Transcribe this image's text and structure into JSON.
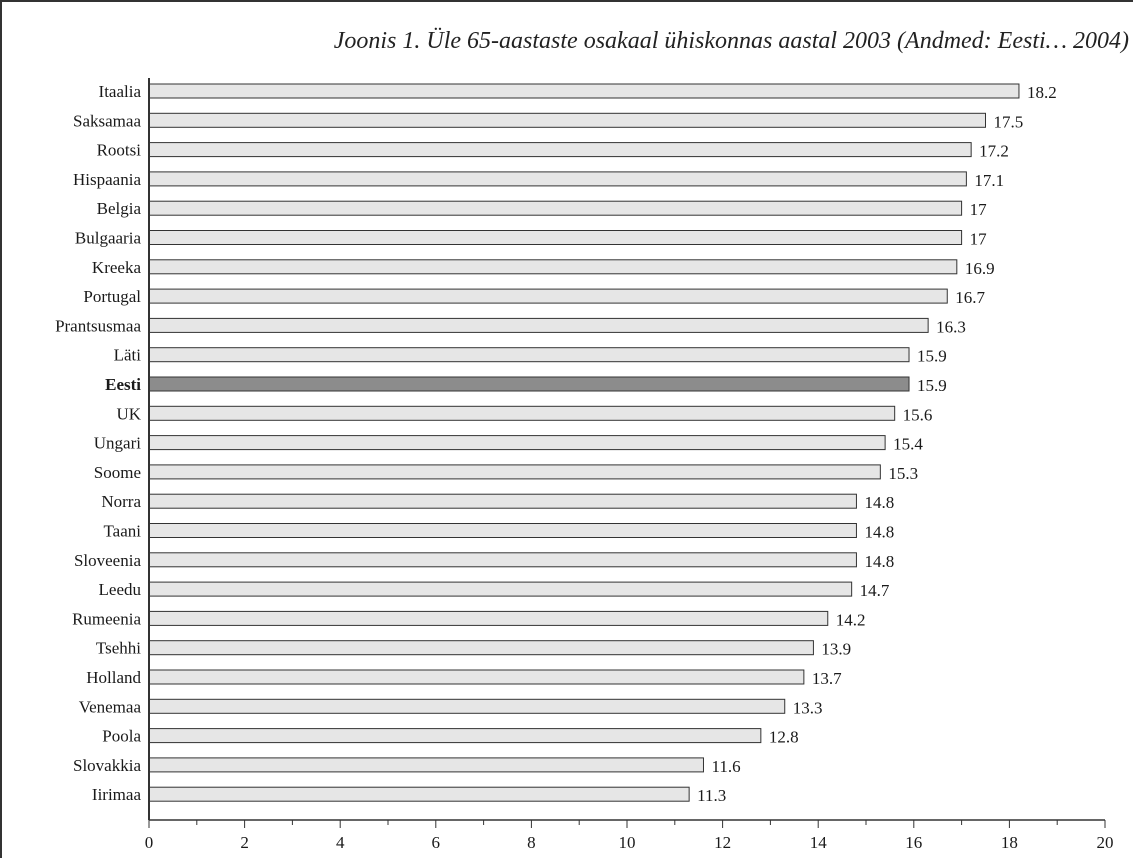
{
  "chart_data": {
    "type": "bar",
    "orientation": "horizontal",
    "title": "Joonis 1. Üle 65-aastaste osakaal ühiskonnas aastal 2003 (Andmed: Eesti… 2004)",
    "xlabel": "",
    "ylabel": "",
    "categories": [
      "Itaalia",
      "Saksamaa",
      "Rootsi",
      "Hispaania",
      "Belgia",
      "Bulgaaria",
      "Kreeka",
      "Portugal",
      "Prantsusmaa",
      "Läti",
      "Eesti",
      "UK",
      "Ungari",
      "Soome",
      "Norra",
      "Taani",
      "Sloveenia",
      "Leedu",
      "Rumeenia",
      "Tsehhi",
      "Holland",
      "Venemaa",
      "Poola",
      "Slovakkia",
      "Iirimaa"
    ],
    "values": [
      18.2,
      17.5,
      17.2,
      17.1,
      17,
      17,
      16.9,
      16.7,
      16.3,
      15.9,
      15.9,
      15.6,
      15.4,
      15.3,
      14.8,
      14.8,
      14.8,
      14.7,
      14.2,
      13.9,
      13.7,
      13.3,
      12.8,
      11.6,
      11.3
    ],
    "value_labels": [
      "18.2",
      "17.5",
      "17.2",
      "17.1",
      "17",
      "17",
      "16.9",
      "16.7",
      "16.3",
      "15.9",
      "15.9",
      "15.6",
      "15.4",
      "15.3",
      "14.8",
      "14.8",
      "14.8",
      "14.7",
      "14.2",
      "13.9",
      "13.7",
      "13.3",
      "12.8",
      "11.6",
      "11.3"
    ],
    "highlight": "Eesti",
    "xlim": [
      0,
      20
    ],
    "x_ticks": [
      "0",
      "2",
      "4",
      "6",
      "8",
      "10",
      "12",
      "14",
      "16",
      "18",
      "20"
    ],
    "grid": false,
    "colors": {
      "bar_fill": "#e6e6e6",
      "bar_highlight_fill": "#8c8c8c",
      "bar_stroke": "#333333",
      "axis": "#333333"
    }
  }
}
